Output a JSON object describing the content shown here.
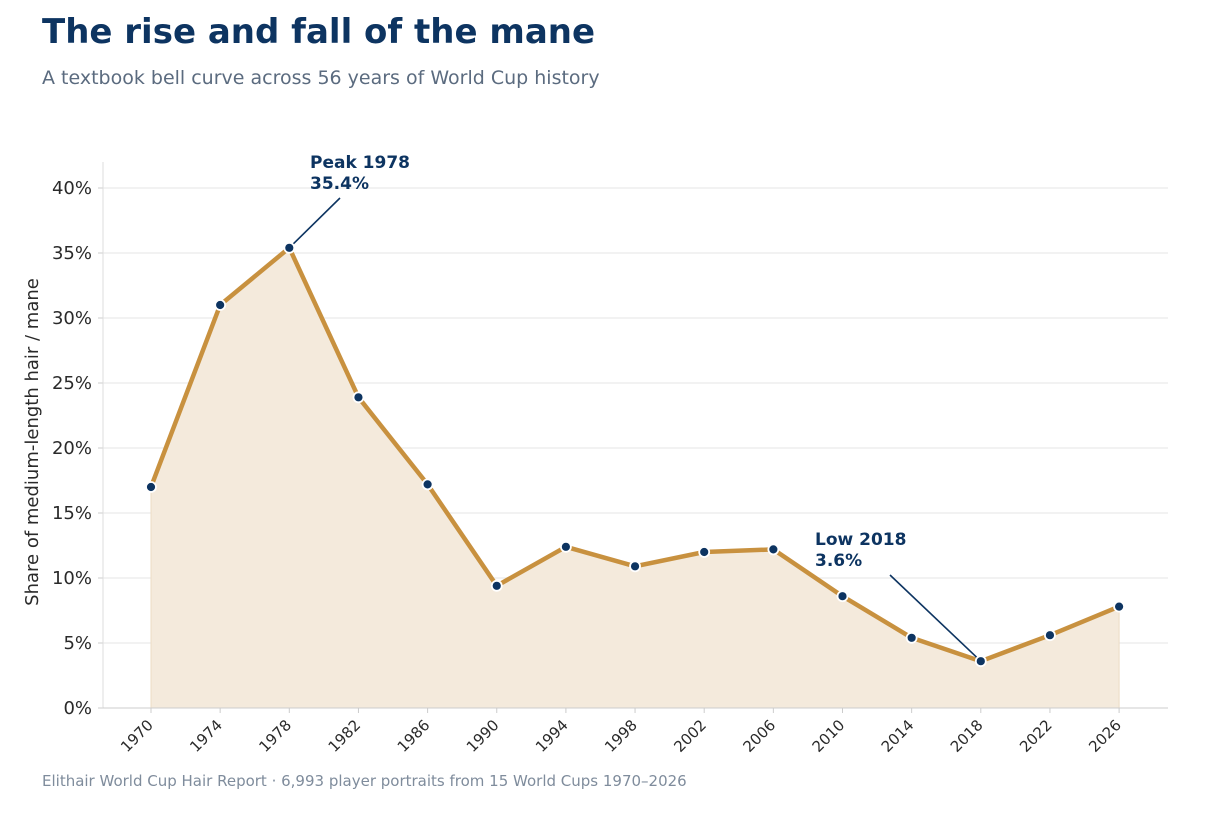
{
  "header": {
    "title": "The rise and fall of the mane",
    "subtitle": "A textbook bell curve across 56 years of World Cup history"
  },
  "footer": {
    "source": "Elithair World Cup Hair Report  ·  6,993 player portraits from 15 World Cups 1970–2026"
  },
  "colors": {
    "line": "#c8913f",
    "fill": "#f4eadc",
    "marker": "#0d3461",
    "annotation": "#0d3461",
    "grid": "#eeeeee"
  },
  "chart_data": {
    "type": "line",
    "title": "The rise and fall of the mane",
    "subtitle": "A textbook bell curve across 56 years of World Cup history",
    "xlabel": "",
    "ylabel": "Share of medium-length hair / mane",
    "categories": [
      "1970",
      "1974",
      "1978",
      "1982",
      "1986",
      "1990",
      "1994",
      "1998",
      "2002",
      "2006",
      "2010",
      "2014",
      "2018",
      "2022",
      "2026"
    ],
    "values": [
      17.0,
      31.0,
      35.4,
      23.9,
      17.2,
      9.4,
      12.4,
      10.9,
      12.0,
      12.2,
      8.6,
      5.4,
      3.6,
      5.6,
      7.8
    ],
    "ylim": [
      0,
      42
    ],
    "yticks": [
      0,
      5,
      10,
      15,
      20,
      25,
      30,
      35,
      40
    ],
    "ytick_labels": [
      "0%",
      "5%",
      "10%",
      "15%",
      "20%",
      "25%",
      "30%",
      "35%",
      "40%"
    ],
    "grid": "horizontal",
    "area_fill": true,
    "annotations": [
      {
        "index": 2,
        "line1": "Peak 1978",
        "line2": "35.4%"
      },
      {
        "index": 12,
        "line1": "Low 2018",
        "line2": "3.6%"
      }
    ]
  }
}
